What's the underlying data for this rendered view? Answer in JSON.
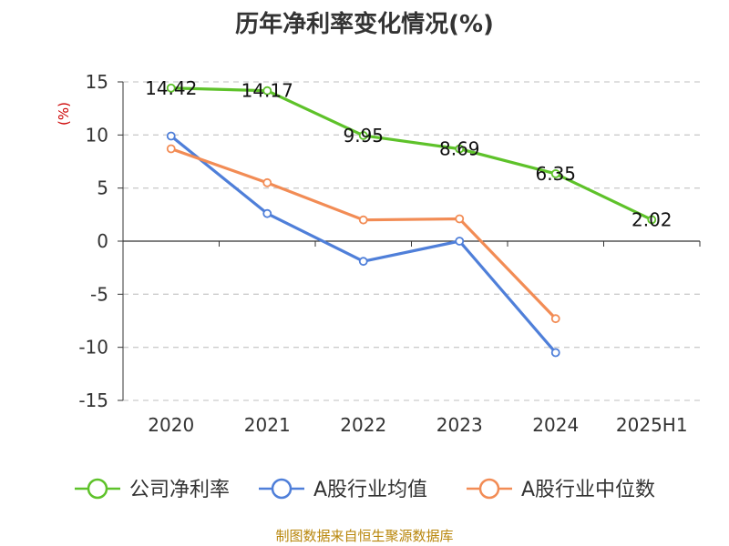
{
  "chart_data": {
    "type": "line",
    "title": "历年净利率变化情况(%)",
    "ylabel": "(%)",
    "categories": [
      "2020",
      "2021",
      "2022",
      "2023",
      "2024",
      "2025H1"
    ],
    "ylim": [
      -15,
      15
    ],
    "yticks": [
      15,
      10,
      5,
      0,
      -5,
      -10,
      -15
    ],
    "grid": true,
    "legend_position": "bottom",
    "series": [
      {
        "name": "公司净利率",
        "color": "#5ec22a",
        "values": [
          14.42,
          14.17,
          9.95,
          8.69,
          6.35,
          2.02
        ],
        "labels": [
          "14.42",
          "14.17",
          "9.95",
          "8.69",
          "6.35",
          "2.02"
        ]
      },
      {
        "name": "A股行业均值",
        "color": "#4f7fd9",
        "values": [
          9.9,
          2.6,
          -1.9,
          0.0,
          -10.5,
          null
        ]
      },
      {
        "name": "A股行业中位数",
        "color": "#f28c55",
        "values": [
          8.7,
          5.5,
          2.0,
          2.1,
          -7.3,
          null
        ]
      }
    ]
  },
  "source": "制图数据来自恒生聚源数据库"
}
